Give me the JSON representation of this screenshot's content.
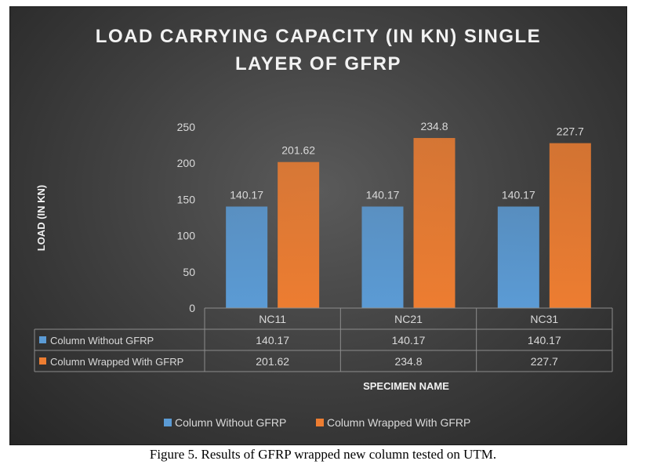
{
  "caption": "Figure 5. Results of GFRP wrapped new column tested on UTM.",
  "chart_data": {
    "type": "bar",
    "title_lines": [
      "LOAD CARRYING CAPACITY (IN KN) SINGLE",
      "LAYER OF GFRP"
    ],
    "xlabel": "SPECIMEN NAME",
    "ylabel": "LOAD (IN KN)",
    "ylim": [
      0,
      250
    ],
    "yticks": [
      0,
      50,
      100,
      150,
      200,
      250
    ],
    "categories": [
      "NC11",
      "NC21",
      "NC31"
    ],
    "series": [
      {
        "name": "Column Without GFRP",
        "values": [
          140.17,
          140.17,
          140.17
        ],
        "labels": [
          "140.17",
          "140.17",
          "140.17"
        ],
        "color": "#5b9bd5"
      },
      {
        "name": "Column Wrapped With GFRP",
        "values": [
          201.62,
          234.8,
          227.7
        ],
        "labels": [
          "201.62",
          "234.8",
          "227.7"
        ],
        "color": "#ed7d31"
      }
    ],
    "grid": false,
    "legend": "bottom",
    "data_table": true
  }
}
